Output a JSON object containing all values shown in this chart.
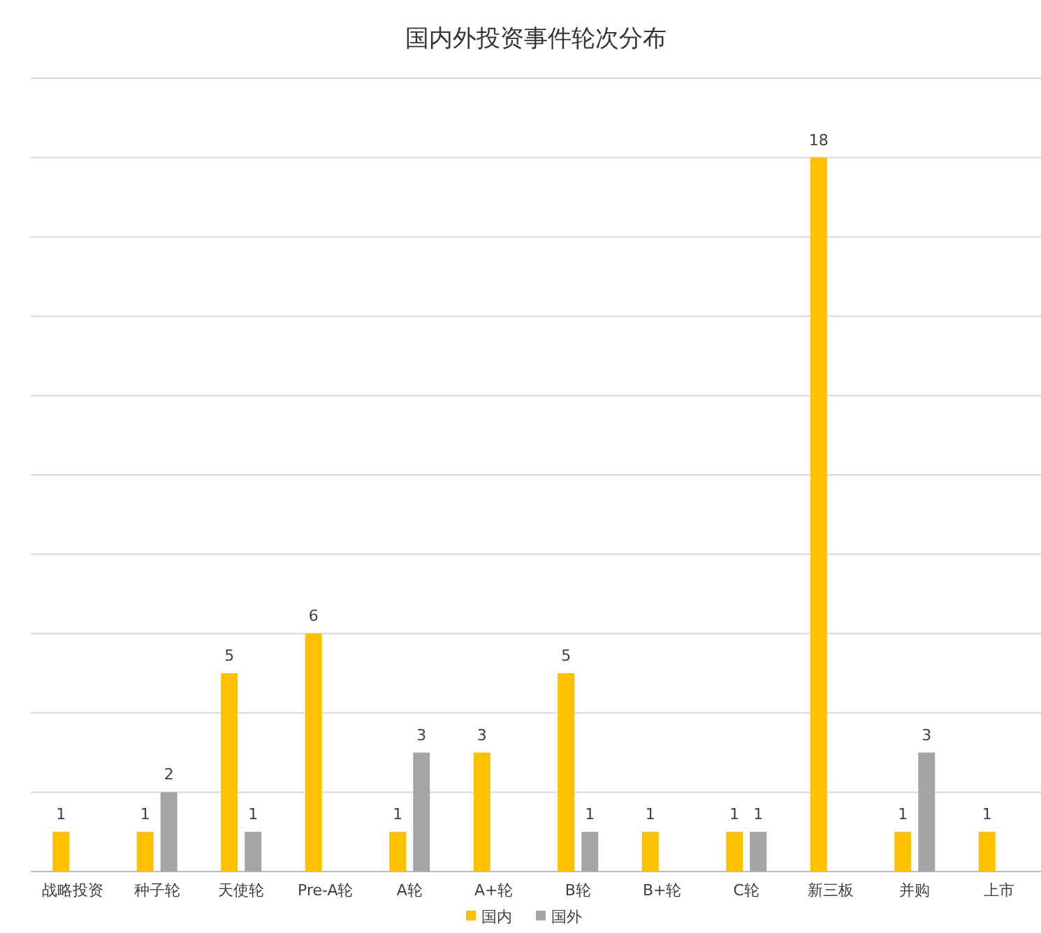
{
  "chart_data": {
    "type": "bar",
    "title": "国内外投资事件轮次分布",
    "categories": [
      "战略投资",
      "种子轮",
      "天使轮",
      "Pre-A轮",
      "A轮",
      "A+轮",
      "B轮",
      "B+轮",
      "C轮",
      "新三板",
      "并购",
      "上市"
    ],
    "series": [
      {
        "name": "国内",
        "color": "#ffc000",
        "values": [
          1,
          1,
          5,
          6,
          1,
          3,
          5,
          1,
          1,
          18,
          1,
          1
        ]
      },
      {
        "name": "国外",
        "color": "#a5a5a5",
        "values": [
          null,
          2,
          1,
          null,
          3,
          null,
          1,
          null,
          1,
          null,
          3,
          null
        ]
      }
    ],
    "ylim": [
      0,
      20
    ],
    "yticks": [
      {
        "value": 0,
        "label": null
      },
      {
        "value": 2,
        "label": null
      },
      {
        "value": 4,
        "label": null
      },
      {
        "value": 6,
        "label": null
      },
      {
        "value": 8,
        "label": null
      },
      {
        "value": 10,
        "label": null
      },
      {
        "value": 12,
        "label": null
      },
      {
        "value": 14,
        "label": null
      },
      {
        "value": 16,
        "label": null
      },
      {
        "value": 18,
        "label": null
      },
      {
        "value": 20,
        "label": null
      }
    ],
    "grid": "y",
    "data_labels": true,
    "legend": "bottom",
    "tick_labels": "x"
  }
}
